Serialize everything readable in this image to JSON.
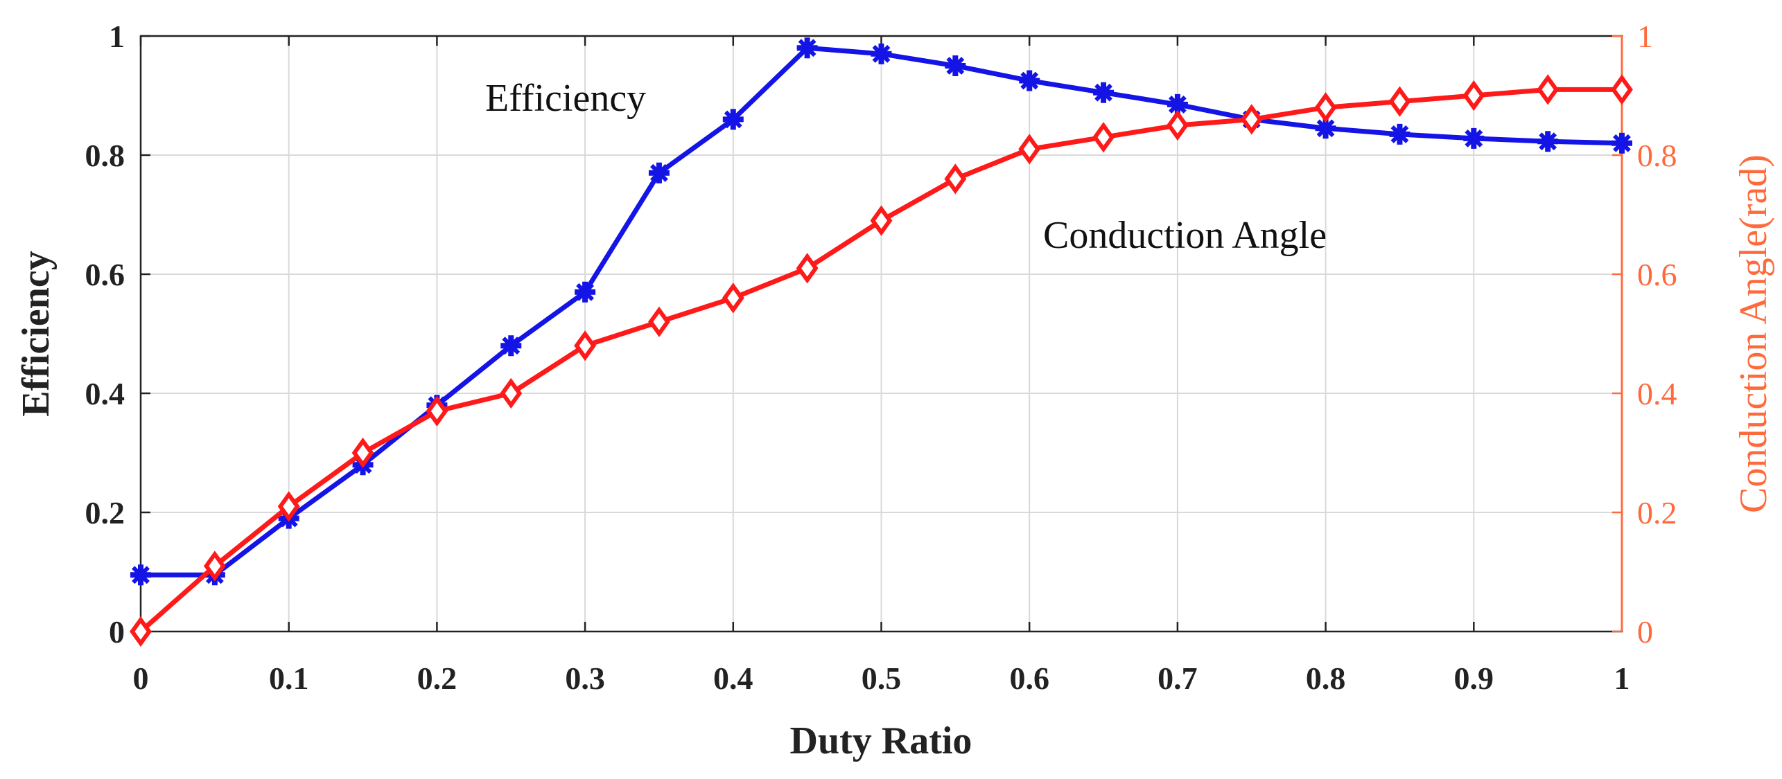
{
  "chart_data": {
    "type": "line",
    "title": "",
    "xlabel": "Duty Ratio",
    "ylabel": "Efficiency",
    "ylabel_right": "Conduction Angle(rad)",
    "xlim": [
      0,
      1
    ],
    "ylim": [
      0,
      1
    ],
    "ylim_right": [
      0,
      1
    ],
    "grid": true,
    "x_ticks": [
      "0",
      "0.1",
      "0.2",
      "0.3",
      "0.4",
      "0.5",
      "0.6",
      "0.7",
      "0.8",
      "0.9",
      "1"
    ],
    "y_ticks": [
      "0",
      "0.2",
      "0.4",
      "0.6",
      "0.8",
      "1"
    ],
    "y_ticks_right": [
      "0",
      "0.2",
      "0.4",
      "0.6",
      "0.8",
      "1"
    ],
    "x": [
      0,
      0.05,
      0.1,
      0.15,
      0.2,
      0.25,
      0.3,
      0.35,
      0.4,
      0.45,
      0.5,
      0.55,
      0.6,
      0.65,
      0.7,
      0.75,
      0.8,
      0.85,
      0.9,
      0.95,
      1
    ],
    "series": [
      {
        "name": "Efficiency",
        "axis": "left",
        "color": "#1414e6",
        "marker": "star",
        "values": [
          0.095,
          0.095,
          0.19,
          0.28,
          0.38,
          0.48,
          0.57,
          0.77,
          0.86,
          0.98,
          0.97,
          0.95,
          0.925,
          0.905,
          0.885,
          0.86,
          0.845,
          0.835,
          0.828,
          0.823,
          0.82
        ]
      },
      {
        "name": "Conduction Angle",
        "axis": "right",
        "color": "#ff1a1a",
        "marker": "diamond",
        "values": [
          0.0,
          0.11,
          0.21,
          0.3,
          0.37,
          0.4,
          0.48,
          0.52,
          0.56,
          0.61,
          0.69,
          0.76,
          0.81,
          0.83,
          0.85,
          0.86,
          0.88,
          0.89,
          0.9,
          0.91,
          0.91
        ]
      }
    ],
    "annotations": [
      "Efficiency",
      "Conduction Angle"
    ],
    "right_axis_color": "#ff6a3d",
    "grid_color": "#d9d9d9"
  }
}
